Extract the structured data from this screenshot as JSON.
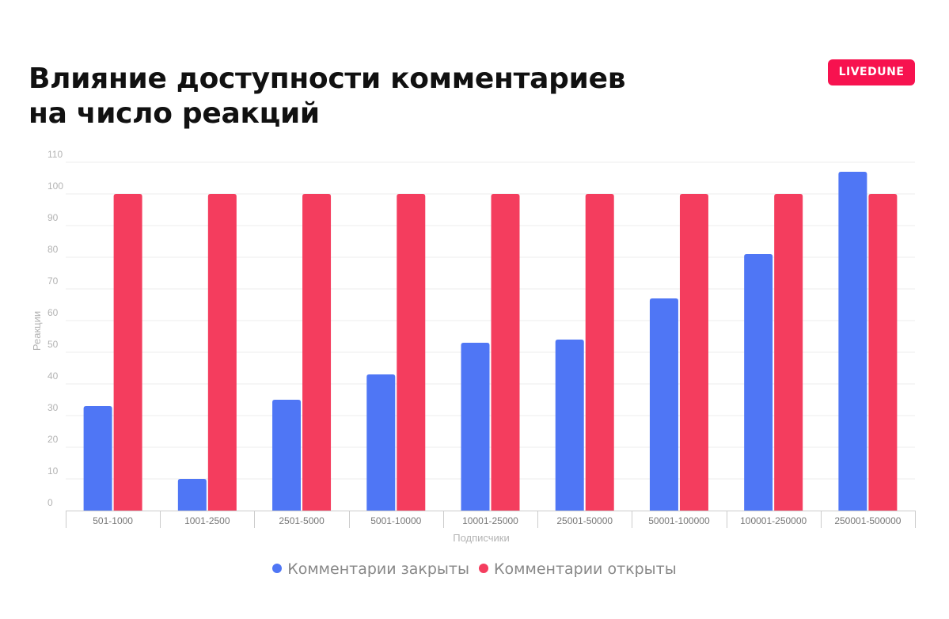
{
  "title_lines": [
    "Влияние доступности комментариев",
    "на число реакций"
  ],
  "logo_text": "LIVEDUNE",
  "colors": {
    "closed": "#4f76f5",
    "open": "#f43d5e",
    "logo": "#f7124f"
  },
  "chart_data": {
    "type": "bar",
    "xlabel": "Подписчики",
    "ylabel": "Реакции",
    "ylim": [
      0,
      110
    ],
    "yticks": [
      0,
      10,
      20,
      30,
      40,
      50,
      60,
      70,
      80,
      90,
      100,
      110
    ],
    "grid": true,
    "legend_position": "bottom",
    "categories": [
      "501-1000",
      "1001-2500",
      "2501-5000",
      "5001-10000",
      "10001-25000",
      "25001-50000",
      "50001-100000",
      "100001-250000",
      "250001-500000"
    ],
    "series": [
      {
        "name": "Комментарии закрыты",
        "color": "#4f76f5",
        "values": [
          33,
          10,
          35,
          43,
          53,
          54,
          67,
          81,
          107
        ]
      },
      {
        "name": "Комментарии открыты",
        "color": "#f43d5e",
        "values": [
          100,
          100,
          100,
          100,
          100,
          100,
          100,
          100,
          100
        ]
      }
    ]
  }
}
